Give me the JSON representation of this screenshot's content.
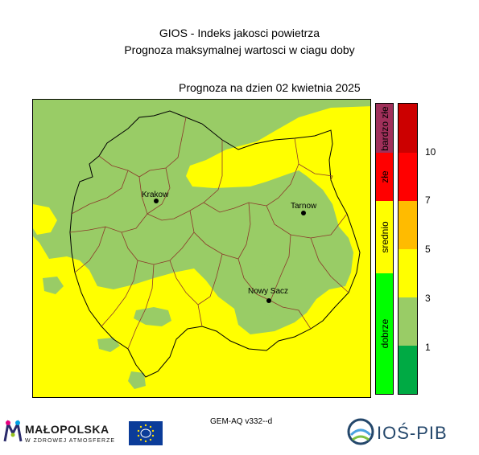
{
  "header": {
    "title": "GIOS - Indeks jakosci powietrza",
    "subtitle": "Prognoza maksymalnej wartosci w ciagu doby",
    "forecast_date": "Prognoza na dzien  02 kwietnia 2025"
  },
  "map": {
    "cities": [
      {
        "name": "Krakow"
      },
      {
        "name": "Tarnow"
      },
      {
        "name": "Nowy Sacz"
      }
    ],
    "colors": {
      "yellow": "#ffff00",
      "light_green": "#99cc66"
    }
  },
  "legend": {
    "categories": [
      {
        "label": "bardzo złe",
        "color": "#a0305a"
      },
      {
        "label": "złe",
        "color": "#ff0000"
      },
      {
        "label": "srednio",
        "color": "#ffff00"
      },
      {
        "label": "dobrze",
        "color": "#00ff00"
      }
    ],
    "scale_colors": [
      "#cc0000",
      "#ff0000",
      "#ffbb00",
      "#ffff00",
      "#99cc66",
      "#00aa44"
    ],
    "ticks": [
      "10",
      "7",
      "5",
      "3",
      "1"
    ]
  },
  "footer": {
    "model": "GEM-AQ v332--d",
    "malopolska_logo": "MAŁOPOLSKA",
    "malopolska_tagline": "W ZDROWEJ ATMOSFERZE",
    "institute_logo": "IOŚ-PIB"
  }
}
